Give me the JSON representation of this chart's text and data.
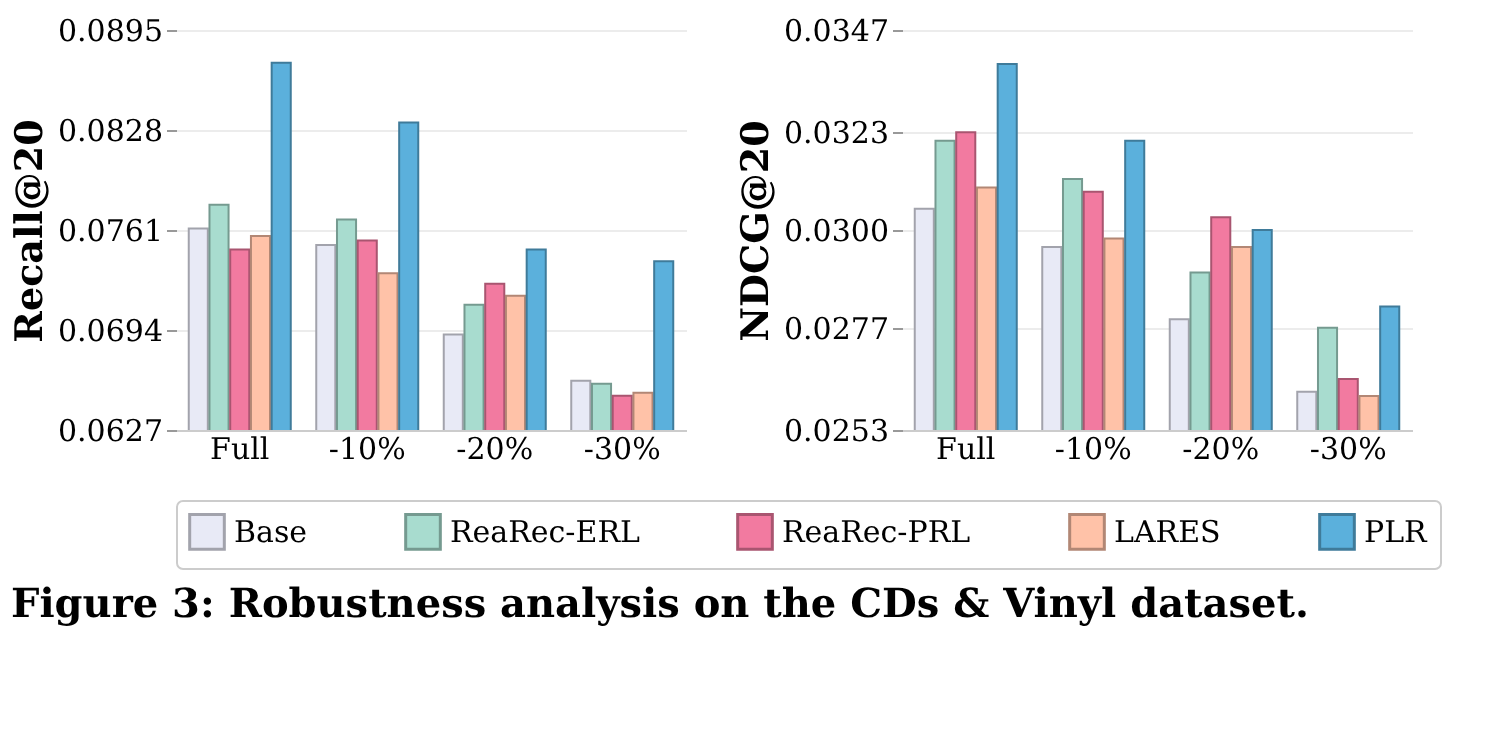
{
  "chart_data": [
    {
      "type": "bar",
      "ylabel": "Recall@20",
      "categories": [
        "Full",
        "-10%",
        "-20%",
        "-30%"
      ],
      "ylim": [
        0.0627,
        0.0895
      ],
      "yticks": [
        0.0627,
        0.0694,
        0.0761,
        0.0828,
        0.0895
      ],
      "grid": "y",
      "legend": "bottom",
      "annotations": [
        "Figure 3: Robustness analysis on the CDs & Vinyl dataset."
      ],
      "series": [
        {
          "name": "Base",
          "color": "#e8eaf6",
          "values": [
            0.0762,
            0.0751,
            0.0691,
            0.066
          ]
        },
        {
          "name": "ReaRec-ERL",
          "color": "#a8dccf",
          "values": [
            0.0778,
            0.0768,
            0.0711,
            0.0658
          ]
        },
        {
          "name": "ReaRec-PRL",
          "color": "#f27aa0",
          "values": [
            0.0748,
            0.0754,
            0.0725,
            0.065
          ]
        },
        {
          "name": "LARES",
          "color": "#ffc2a8",
          "values": [
            0.0757,
            0.0732,
            0.0717,
            0.0652
          ]
        },
        {
          "name": "PLR",
          "color": "#5bb0dc",
          "values": [
            0.0873,
            0.0833,
            0.0748,
            0.074
          ]
        }
      ]
    },
    {
      "type": "bar",
      "ylabel": "NDCG@20",
      "categories": [
        "Full",
        "-10%",
        "-20%",
        "-30%"
      ],
      "ylim": [
        0.0253,
        0.0347
      ],
      "yticks": [
        0.0253,
        0.0277,
        {
          "value": 0.03,
          "label": "0.0300"
        },
        0.0323,
        0.0347
      ],
      "grid": "y",
      "legend": "bottom",
      "series": [
        {
          "name": "Base",
          "color": "#e8eaf6",
          "values": [
            0.0305,
            0.0296,
            0.0279,
            0.0262
          ]
        },
        {
          "name": "ReaRec-ERL",
          "color": "#a8dccf",
          "values": [
            0.0321,
            0.0312,
            0.029,
            0.0277
          ]
        },
        {
          "name": "ReaRec-PRL",
          "color": "#f27aa0",
          "values": [
            0.0323,
            0.0309,
            0.0303,
            0.0265
          ]
        },
        {
          "name": "LARES",
          "color": "#ffc2a8",
          "values": [
            0.031,
            0.0298,
            0.0296,
            0.0261
          ]
        },
        {
          "name": "PLR",
          "color": "#5bb0dc",
          "values": [
            0.0339,
            0.0321,
            0.03,
            0.0282
          ]
        }
      ]
    }
  ]
}
